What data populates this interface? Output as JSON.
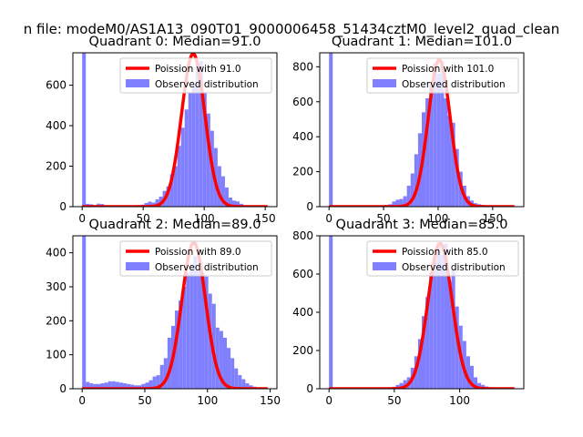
{
  "suptitle": "n file: modeM0/AS1A13_090T01_9000006458_51434cztM0_level2_quad_clean",
  "colors": {
    "histogram": "#8080ff",
    "poisson": "#ff0000"
  },
  "chart_data": [
    {
      "type": "bar",
      "title": "Quadrant 0: Median=91.0",
      "xlabel": "",
      "ylabel": "",
      "xlim": [
        -7.6,
        159.6
      ],
      "ylim": [
        0,
        760
      ],
      "xticks": [
        0,
        50,
        100,
        150
      ],
      "yticks": [
        0,
        200,
        400,
        600
      ],
      "legend": {
        "position": "top-right",
        "entries": [
          "Poission with 91.0",
          "Observed distribution"
        ]
      },
      "bin_width": 3,
      "bins": {
        "x": [
          0,
          3,
          6,
          9,
          12,
          15,
          18,
          21,
          24,
          27,
          30,
          33,
          36,
          39,
          42,
          45,
          48,
          51,
          54,
          57,
          60,
          63,
          66,
          69,
          72,
          75,
          78,
          81,
          84,
          87,
          90,
          93,
          96,
          99,
          102,
          105,
          108,
          111,
          114,
          117,
          120,
          123,
          126,
          129,
          132,
          135,
          138,
          141,
          144,
          147,
          150
        ],
        "counts": [
          760,
          14,
          12,
          8,
          15,
          13,
          6,
          4,
          2,
          2,
          2,
          4,
          3,
          6,
          6,
          8,
          10,
          18,
          25,
          20,
          36,
          50,
          78,
          100,
          160,
          200,
          300,
          390,
          480,
          565,
          600,
          710,
          720,
          565,
          460,
          375,
          290,
          200,
          150,
          95,
          45,
          30,
          26,
          14,
          6,
          3,
          2,
          2,
          1,
          1,
          0
        ]
      },
      "poisson": {
        "name": "Poission with 91.0",
        "mean": 91.0,
        "peak": 755,
        "x_range": [
          0,
          152
        ]
      }
    },
    {
      "type": "bar",
      "title": "Quadrant 1: Median=101.0",
      "xlabel": "",
      "ylabel": "",
      "xlim": [
        -8.5,
        178.5
      ],
      "ylim": [
        0,
        880
      ],
      "xticks": [
        0,
        50,
        100,
        150
      ],
      "yticks": [
        0,
        200,
        400,
        600,
        800
      ],
      "legend": {
        "position": "top-right",
        "entries": [
          "Poission with 101.0",
          "Observed distribution"
        ]
      },
      "bin_width": 3.4,
      "bins": {
        "x": [
          0,
          3.4,
          6.8,
          10.2,
          13.6,
          17,
          20.4,
          23.8,
          27.2,
          30.6,
          34,
          37.4,
          40.8,
          44.2,
          47.6,
          51,
          54.4,
          57.8,
          61.2,
          64.6,
          68,
          71.4,
          74.8,
          78.2,
          81.6,
          85,
          88.4,
          91.8,
          95.2,
          98.6,
          102,
          105.4,
          108.8,
          112.2,
          115.6,
          119,
          122.4,
          125.8,
          129.2,
          132.6,
          136,
          139.4,
          142.8,
          146.2,
          149.6,
          153,
          156.4,
          159.8,
          163.2,
          166.6
        ],
        "counts": [
          880,
          2,
          1,
          1,
          1,
          1,
          1,
          1,
          1,
          1,
          2,
          2,
          3,
          4,
          6,
          10,
          14,
          30,
          40,
          44,
          60,
          120,
          190,
          300,
          420,
          540,
          620,
          710,
          820,
          760,
          830,
          620,
          520,
          480,
          330,
          200,
          120,
          60,
          35,
          20,
          14,
          10,
          6,
          4,
          3,
          2,
          2,
          1,
          1,
          0
        ]
      },
      "poisson": {
        "name": "Poission with 101.0",
        "mean": 101.0,
        "peak": 840,
        "x_range": [
          0,
          170
        ]
      }
    },
    {
      "type": "bar",
      "title": "Quadrant 2: Median=89.0",
      "xlabel": "",
      "ylabel": "",
      "xlim": [
        -7.4,
        155.4
      ],
      "ylim": [
        0,
        450
      ],
      "xticks": [
        0,
        50,
        100,
        150
      ],
      "yticks": [
        0,
        100,
        200,
        300,
        400
      ],
      "legend": {
        "position": "top-right",
        "entries": [
          "Poission with 89.0",
          "Observed distribution"
        ]
      },
      "bin_width": 2.96,
      "bins": {
        "x": [
          0,
          2.96,
          5.92,
          8.88,
          11.84,
          14.8,
          17.76,
          20.72,
          23.68,
          26.64,
          29.6,
          32.56,
          35.52,
          38.48,
          41.44,
          44.4,
          47.36,
          50.32,
          53.28,
          56.24,
          59.2,
          62.16,
          65.12,
          68.08,
          71.04,
          74,
          76.96,
          79.92,
          82.88,
          85.84,
          88.8,
          91.76,
          94.72,
          97.68,
          100.64,
          103.6,
          106.56,
          109.52,
          112.48,
          115.44,
          118.4,
          121.36,
          124.32,
          127.28,
          130.24,
          133.2,
          136.16,
          139.12,
          142.08,
          145.04
        ],
        "counts": [
          450,
          20,
          16,
          14,
          14,
          16,
          18,
          22,
          22,
          20,
          18,
          16,
          14,
          12,
          10,
          10,
          14,
          18,
          25,
          36,
          40,
          70,
          90,
          150,
          185,
          230,
          260,
          300,
          340,
          360,
          390,
          350,
          340,
          330,
          280,
          250,
          180,
          170,
          150,
          120,
          90,
          60,
          40,
          28,
          16,
          10,
          6,
          4,
          2,
          1
        ]
      },
      "poisson": {
        "name": "Poission with 89.0",
        "mean": 89.0,
        "peak": 430,
        "x_range": [
          0,
          148
        ]
      }
    },
    {
      "type": "bar",
      "title": "Quadrant 3: Median=85.0",
      "xlabel": "",
      "ylabel": "",
      "xlim": [
        -7.1,
        149.1
      ],
      "ylim": [
        0,
        800
      ],
      "xticks": [
        0,
        50,
        100,
        150
      ],
      "yticks": [
        0,
        200,
        400,
        600,
        800
      ],
      "legend": {
        "position": "top-right",
        "entries": [
          "Poission with 85.0",
          "Observed distribution"
        ]
      },
      "bin_width": 2.84,
      "bins": {
        "x": [
          0,
          2.84,
          5.68,
          8.52,
          11.36,
          14.2,
          17.04,
          19.88,
          22.72,
          25.56,
          28.4,
          31.24,
          34.08,
          36.92,
          39.76,
          42.6,
          45.44,
          48.28,
          51.12,
          53.96,
          56.8,
          59.64,
          62.48,
          65.32,
          68.16,
          71,
          73.84,
          76.68,
          79.52,
          82.36,
          85.2,
          88.04,
          90.88,
          93.72,
          96.56,
          99.4,
          102.24,
          105.08,
          107.92,
          110.76,
          113.6,
          116.44,
          119.28,
          122.12,
          124.96,
          127.8,
          130.64,
          133.48,
          136.32,
          139.16
        ],
        "counts": [
          800,
          1,
          1,
          1,
          1,
          1,
          1,
          1,
          1,
          1,
          1,
          1,
          1,
          2,
          2,
          4,
          6,
          10,
          20,
          30,
          45,
          60,
          110,
          170,
          260,
          380,
          480,
          610,
          680,
          760,
          700,
          760,
          560,
          620,
          430,
          330,
          250,
          170,
          120,
          60,
          30,
          20,
          12,
          8,
          6,
          4,
          3,
          2,
          1,
          1
        ]
      },
      "poisson": {
        "name": "Poission with 85.0",
        "mean": 85.0,
        "peak": 760,
        "x_range": [
          0,
          142
        ]
      }
    }
  ]
}
